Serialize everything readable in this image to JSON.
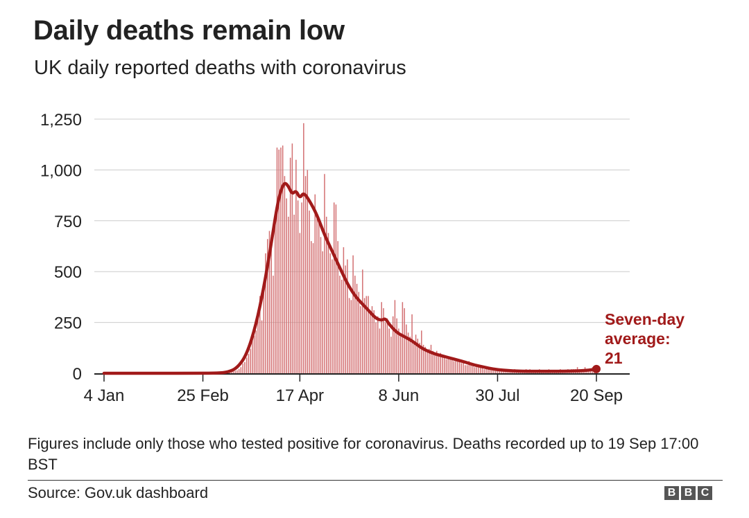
{
  "header": {
    "title": "Daily deaths remain low",
    "subtitle": "UK daily reported deaths with coronavirus"
  },
  "chart_data": {
    "type": "bar",
    "title": "Daily deaths remain low",
    "subtitle": "UK daily reported deaths with coronavirus",
    "x_start_label": "4 Jan",
    "x_end_label": "20 Sep",
    "x_tick_labels": [
      "4 Jan",
      "25 Feb",
      "17 Apr",
      "8 Jun",
      "30 Jul",
      "20 Sep"
    ],
    "x_tick_day_index": [
      0,
      52,
      103,
      155,
      207,
      259
    ],
    "y_ticks": [
      0,
      250,
      500,
      750,
      1000,
      1250
    ],
    "y_tick_labels": [
      "0",
      "250",
      "500",
      "750",
      "1,000",
      "1,250"
    ],
    "ylim": [
      0,
      1250
    ],
    "xlabel": "",
    "ylabel": "",
    "grid": true,
    "bars_start_day_index": 61,
    "series": [
      {
        "name": "Daily reported deaths",
        "type": "bar",
        "color": "#d37072",
        "values": [
          1,
          0,
          2,
          3,
          2,
          5,
          7,
          10,
          12,
          15,
          21,
          30,
          48,
          55,
          77,
          95,
          120,
          165,
          185,
          210,
          290,
          380,
          260,
          440,
          590,
          660,
          700,
          680,
          480,
          780,
          1110,
          1100,
          1110,
          1120,
          970,
          860,
          770,
          1060,
          1130,
          780,
          1050,
          850,
          690,
          840,
          1230,
          970,
          1000,
          800,
          650,
          640,
          880,
          760,
          760,
          670,
          600,
          980,
          770,
          690,
          590,
          560,
          840,
          830,
          650,
          480,
          460,
          620,
          530,
          560,
          370,
          360,
          580,
          480,
          440,
          400,
          330,
          510,
          370,
          380,
          380,
          310,
          330,
          310,
          250,
          280,
          220,
          350,
          320,
          250,
          270,
          220,
          180,
          280,
          360,
          270,
          220,
          190,
          350,
          320,
          240,
          200,
          180,
          290,
          160,
          190,
          170,
          150,
          210,
          140,
          130,
          110,
          120,
          140,
          110,
          100,
          110,
          90,
          100,
          80,
          80,
          70,
          70,
          80,
          70,
          60,
          60,
          70,
          60,
          50,
          50,
          40,
          40,
          60,
          40,
          40,
          30,
          30,
          40,
          30,
          30,
          20,
          30,
          20,
          20,
          20,
          20,
          20,
          20,
          10,
          10,
          10,
          20,
          10,
          10,
          10,
          10,
          20,
          10,
          10,
          10,
          10,
          10,
          20,
          10,
          20,
          10,
          10,
          10,
          10,
          20,
          10,
          10,
          10,
          10,
          20,
          10,
          10,
          10,
          10,
          10,
          20,
          10,
          10,
          10,
          20,
          10,
          20,
          20,
          20,
          30,
          20,
          20,
          20,
          30,
          20,
          20,
          20,
          30,
          20,
          20
        ]
      },
      {
        "name": "Seven-day average",
        "type": "line",
        "color": "#a11a1a",
        "points": [
          [
            0,
            0
          ],
          [
            50,
            0
          ],
          [
            60,
            1
          ],
          [
            65,
            5
          ],
          [
            70,
            25
          ],
          [
            75,
            90
          ],
          [
            80,
            240
          ],
          [
            84,
            420
          ],
          [
            88,
            640
          ],
          [
            91,
            820
          ],
          [
            93,
            900
          ],
          [
            95,
            940
          ],
          [
            97,
            920
          ],
          [
            99,
            880
          ],
          [
            101,
            900
          ],
          [
            103,
            860
          ],
          [
            105,
            890
          ],
          [
            108,
            850
          ],
          [
            112,
            780
          ],
          [
            116,
            680
          ],
          [
            120,
            600
          ],
          [
            124,
            520
          ],
          [
            128,
            440
          ],
          [
            132,
            380
          ],
          [
            136,
            340
          ],
          [
            140,
            300
          ],
          [
            143,
            270
          ],
          [
            146,
            260
          ],
          [
            148,
            270
          ],
          [
            150,
            240
          ],
          [
            154,
            200
          ],
          [
            158,
            180
          ],
          [
            162,
            160
          ],
          [
            166,
            130
          ],
          [
            170,
            110
          ],
          [
            174,
            95
          ],
          [
            178,
            85
          ],
          [
            182,
            75
          ],
          [
            186,
            65
          ],
          [
            190,
            55
          ],
          [
            195,
            40
          ],
          [
            200,
            30
          ],
          [
            205,
            20
          ],
          [
            210,
            15
          ],
          [
            215,
            12
          ],
          [
            220,
            10
          ],
          [
            228,
            10
          ],
          [
            235,
            10
          ],
          [
            242,
            10
          ],
          [
            250,
            12
          ],
          [
            255,
            15
          ],
          [
            259,
            21
          ]
        ]
      }
    ],
    "annotation": {
      "lines": [
        "Seven-day",
        "average:",
        "21"
      ],
      "value": 21
    }
  },
  "footer": {
    "note": "Figures include only those who tested positive for coronavirus. Deaths recorded up to 19 Sep 17:00 BST",
    "source": "Source: Gov.uk dashboard",
    "logo_letters": [
      "B",
      "B",
      "C"
    ]
  },
  "colors": {
    "bars": "#d37072",
    "average_line": "#a11a1a",
    "annotation_text": "#a11a1a",
    "grid": "#cccccc",
    "text": "#222222"
  }
}
